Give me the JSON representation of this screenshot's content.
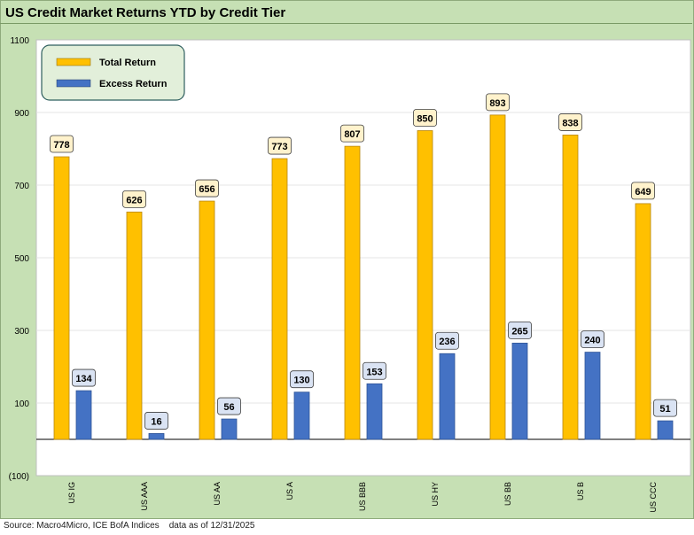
{
  "title": "US Credit Market Returns YTD by Credit Tier",
  "source": "Source: Macro4Micro, ICE BofA Indices    data as of 12/31/2025",
  "colors": {
    "total_return": "#ffc000",
    "excess_return": "#4472c4",
    "total_label_bg": "#fff2cc",
    "excess_label_bg": "#dae3f3",
    "frame": "#c6e0b4"
  },
  "chart_data": {
    "type": "bar",
    "title": "US Credit Market Returns YTD by Credit Tier",
    "xlabel": "",
    "ylabel": "",
    "categories": [
      "US IG",
      "US AAA",
      "US AA",
      "US A",
      "US BBB",
      "US HY",
      "US BB",
      "US B",
      "US CCC"
    ],
    "series": [
      {
        "name": "Total Return",
        "values": [
          778,
          626,
          656,
          773,
          807,
          850,
          893,
          838,
          649
        ]
      },
      {
        "name": "Excess Return",
        "values": [
          134,
          16,
          56,
          130,
          153,
          236,
          265,
          240,
          51
        ]
      }
    ],
    "ylim": [
      -100,
      1100
    ],
    "yticks": [
      -100,
      100,
      300,
      500,
      700,
      900,
      1100
    ],
    "ytick_labels": [
      "(100)",
      "100",
      "300",
      "500",
      "700",
      "900",
      "1100"
    ],
    "grid": true,
    "legend_position": "top-left",
    "data_labels": true
  }
}
